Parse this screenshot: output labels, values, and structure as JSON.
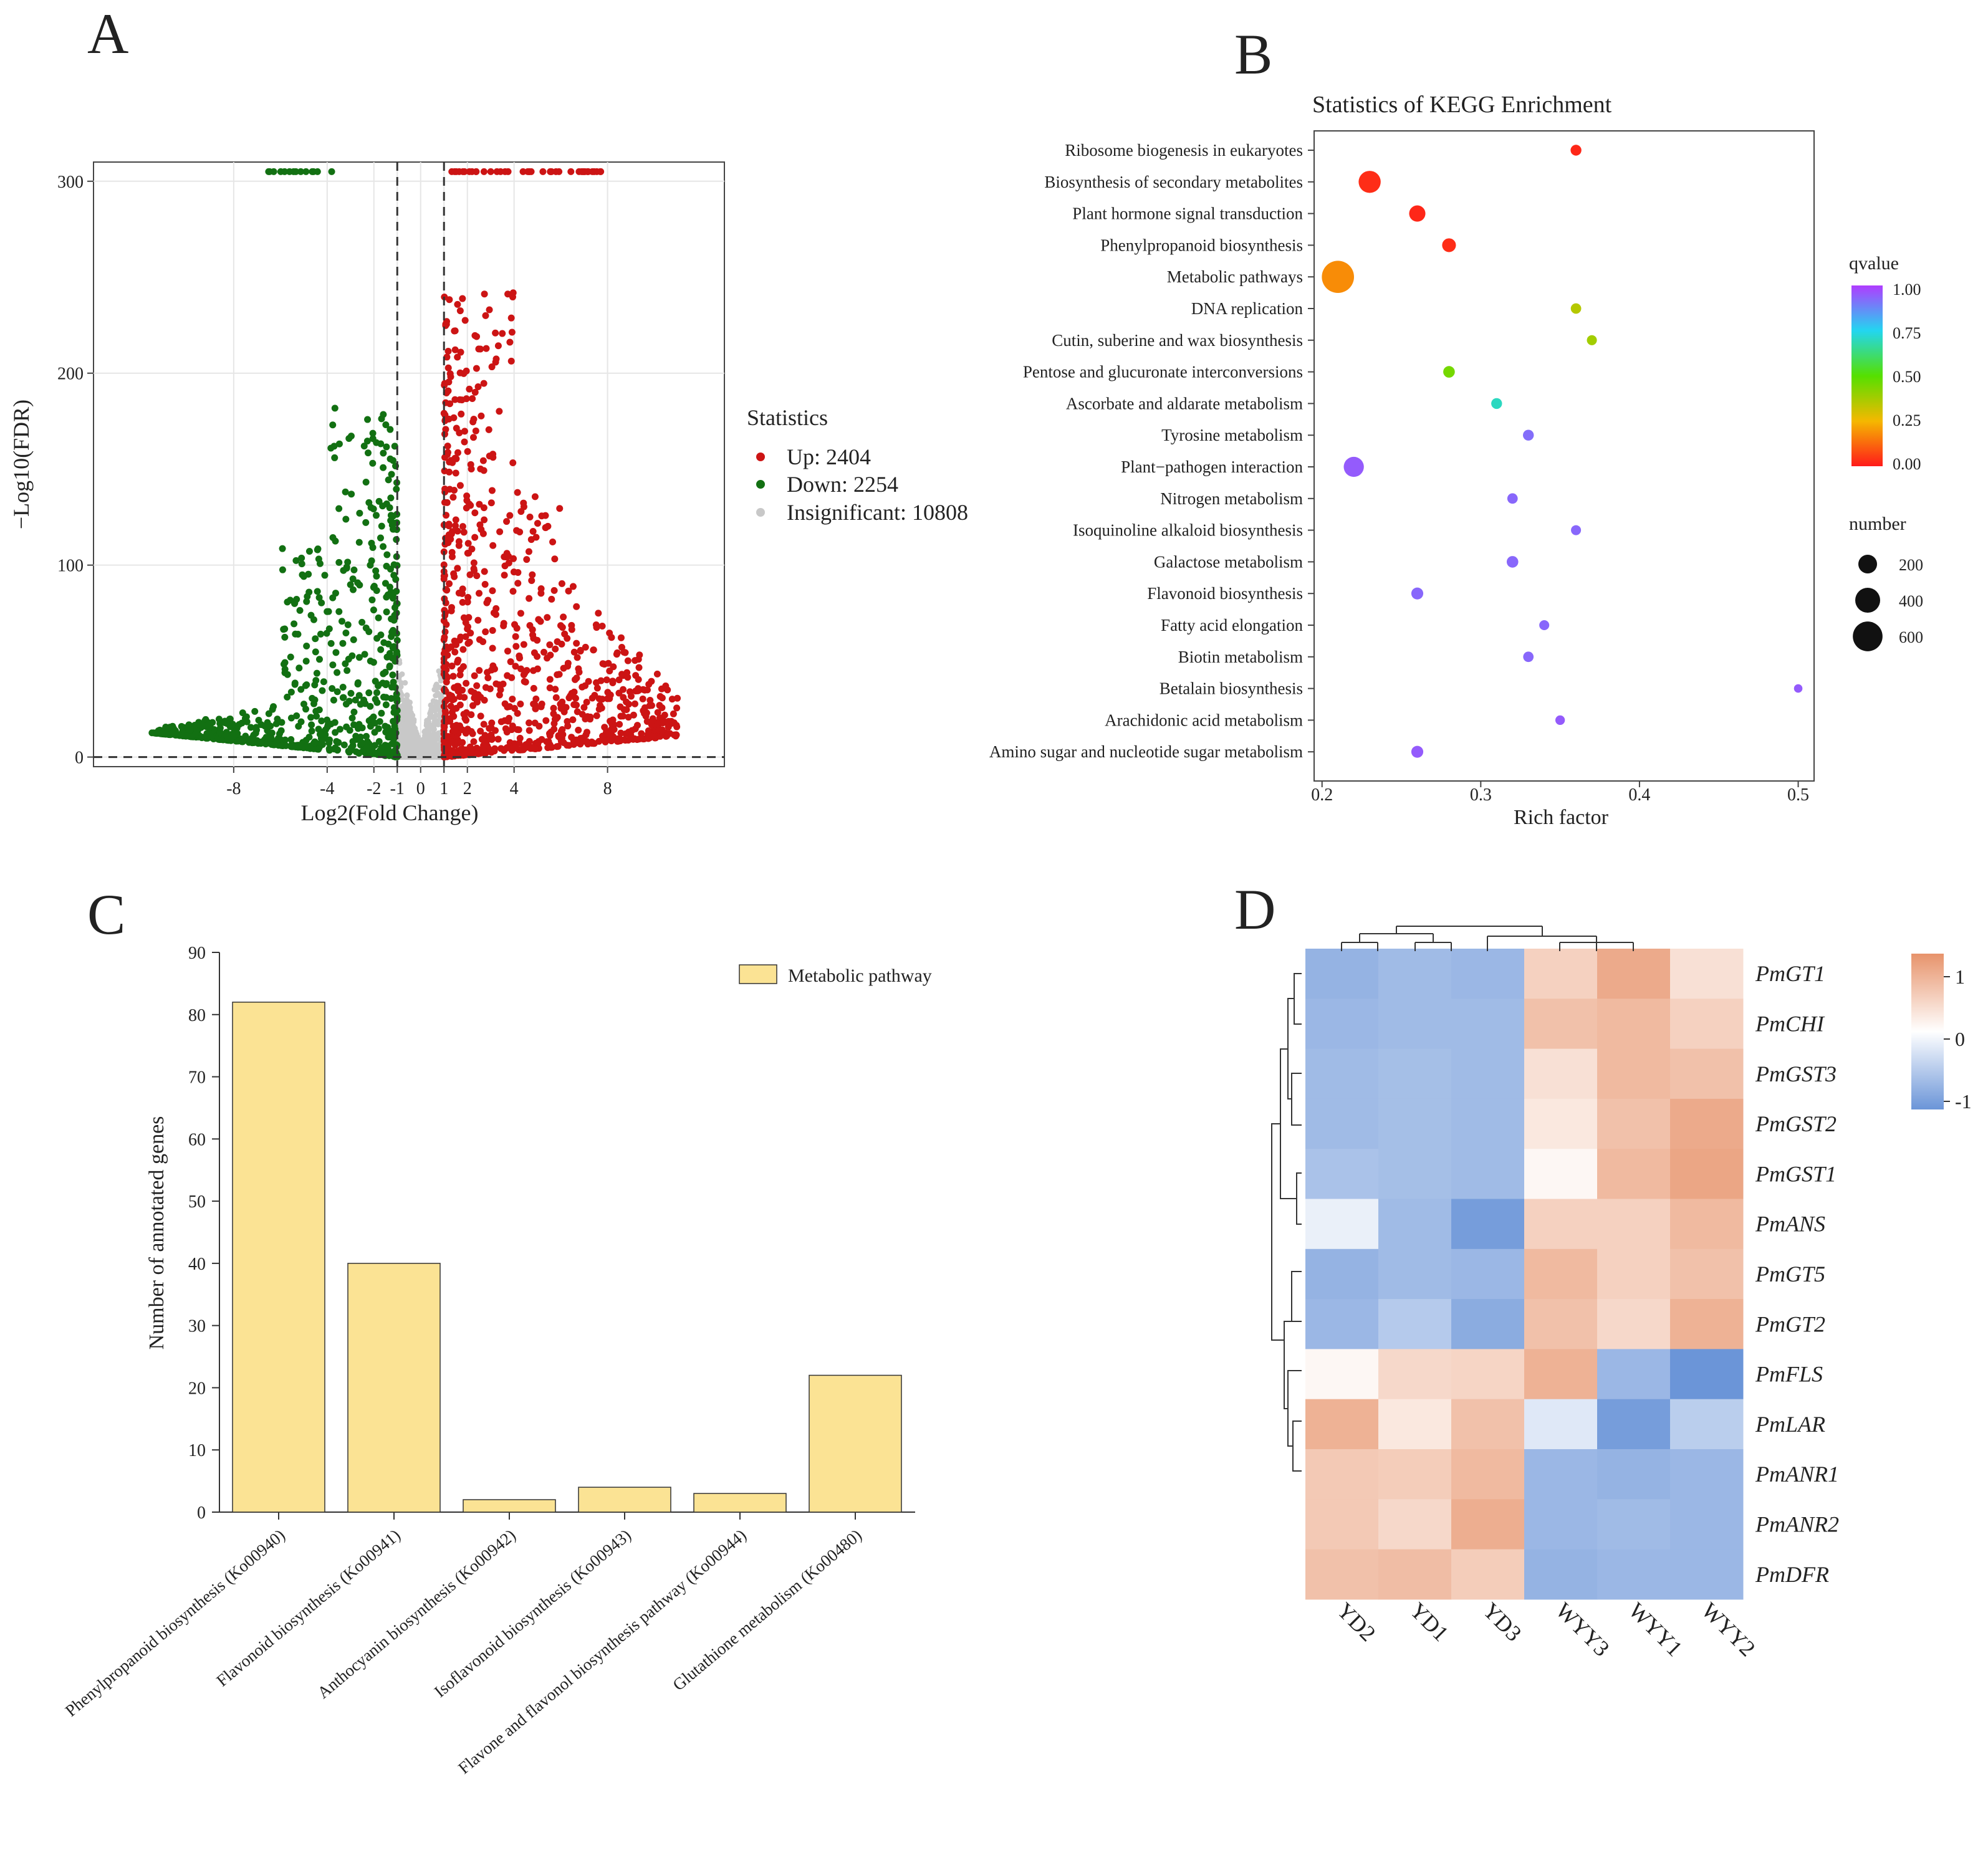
{
  "panels": {
    "a": "A",
    "b": "B",
    "c": "C",
    "d": "D"
  },
  "chart_data": [
    {
      "id": "volcano",
      "type": "scatter",
      "xlabel": "Log2(Fold Change)",
      "ylabel": "−Log10(FDR)",
      "x_ticks": [
        -8,
        -4,
        -2,
        -1,
        0,
        1,
        2,
        4,
        8
      ],
      "y_ticks": [
        0,
        100,
        200,
        300
      ],
      "xlim": [
        -14,
        13
      ],
      "ylim": [
        -5,
        310
      ],
      "thresholds": {
        "x": [
          -1,
          1
        ],
        "y": 0
      },
      "legend": {
        "title": "Statistics",
        "items": [
          {
            "label": "Up: 2404",
            "color": "#cc1414"
          },
          {
            "label": "Down: 2254",
            "color": "#127012"
          },
          {
            "label": "Insignificant: 10808",
            "color": "#c8c8c8"
          }
        ]
      },
      "series": [
        {
          "name": "Up",
          "count": 2404,
          "color": "#cc1414"
        },
        {
          "name": "Down",
          "count": 2254,
          "color": "#127012"
        },
        {
          "name": "Insignificant",
          "count": 10808,
          "color": "#c8c8c8"
        }
      ]
    },
    {
      "id": "kegg",
      "type": "scatter",
      "title": "Statistics of KEGG Enrichment",
      "xlabel": "Rich factor",
      "x_ticks": [
        0.2,
        0.3,
        0.4,
        0.5
      ],
      "xlim": [
        0.195,
        0.51
      ],
      "categories": [
        "Ribosome biogenesis in eukaryotes",
        "Biosynthesis of secondary metabolites",
        "Plant hormone signal transduction",
        "Phenylpropanoid biosynthesis",
        "Metabolic pathways",
        "DNA replication",
        "Cutin, suberine and wax biosynthesis",
        "Pentose and glucuronate interconversions",
        "Ascorbate and aldarate metabolism",
        "Tyrosine metabolism",
        "Plant−pathogen interaction",
        "Nitrogen metabolism",
        "Isoquinoline alkaloid biosynthesis",
        "Galactose metabolism",
        "Flavonoid biosynthesis",
        "Fatty acid elongation",
        "Biotin metabolism",
        "Betalain biosynthesis",
        "Arachidonic acid metabolism",
        "Amino sugar and nucleotide sugar metabolism"
      ],
      "rich_factor": [
        0.36,
        0.23,
        0.26,
        0.28,
        0.21,
        0.36,
        0.37,
        0.28,
        0.31,
        0.33,
        0.22,
        0.32,
        0.36,
        0.32,
        0.26,
        0.34,
        0.33,
        0.5,
        0.35,
        0.26
      ],
      "qvalue": [
        0.02,
        0.03,
        0.02,
        0.03,
        0.18,
        0.35,
        0.38,
        0.45,
        0.7,
        0.92,
        0.95,
        0.93,
        0.93,
        0.93,
        0.93,
        0.93,
        0.93,
        0.95,
        0.95,
        0.95
      ],
      "number": [
        45,
        300,
        140,
        90,
        720,
        40,
        35,
        55,
        45,
        45,
        240,
        40,
        35,
        55,
        60,
        35,
        40,
        20,
        30,
        60
      ],
      "color_legend": {
        "title": "qvalue",
        "ticks": [
          "1.00",
          "0.75",
          "0.50",
          "0.25",
          "0.00"
        ]
      },
      "size_legend": {
        "title": "number",
        "values": [
          200,
          400,
          600
        ]
      }
    },
    {
      "id": "bar",
      "type": "bar",
      "ylabel": "Number of annotated genes",
      "ylim": [
        0,
        90
      ],
      "y_ticks": [
        0,
        10,
        20,
        30,
        40,
        50,
        60,
        70,
        80,
        90
      ],
      "legend": "Metabolic pathway",
      "categories": [
        "Phenylpropanoid biosynthesis (Ko00940)",
        "Flavonoid biosynthesis (Ko00941)",
        "Anthocyanin biosynthesis (Ko00942)",
        "Isoflavonoid biosynthesis (Ko00943)",
        "Flavone and flavonol biosynthesis pathway (Ko00944)",
        "Glutathione metabolism (Ko00480)"
      ],
      "values": [
        82,
        40,
        2,
        4,
        3,
        22
      ]
    },
    {
      "id": "heatmap",
      "type": "heatmap",
      "columns": [
        "YD2",
        "YD1",
        "YD3",
        "WYY3",
        "WYY1",
        "WYY2"
      ],
      "rows": [
        "PmGT1",
        "PmCHI",
        "PmGST3",
        "PmGST2",
        "PmGST1",
        "PmANS",
        "PmGT5",
        "PmGT2",
        "PmFLS",
        "PmLAR",
        "PmANR1",
        "PmANR2",
        "PmDFR"
      ],
      "values": [
        [
          -1.0,
          -0.9,
          -0.95,
          0.6,
          1.1,
          0.4
        ],
        [
          -0.95,
          -0.9,
          -0.9,
          0.8,
          0.9,
          0.6
        ],
        [
          -0.9,
          -0.85,
          -0.9,
          0.4,
          0.9,
          0.8
        ],
        [
          -0.9,
          -0.85,
          -0.9,
          0.3,
          0.8,
          1.1
        ],
        [
          -0.8,
          -0.85,
          -0.9,
          0.1,
          0.9,
          1.15
        ],
        [
          -0.2,
          -0.9,
          -1.3,
          0.6,
          0.6,
          0.9
        ],
        [
          -1.0,
          -0.9,
          -0.95,
          0.9,
          0.6,
          0.8
        ],
        [
          -0.95,
          -0.7,
          -1.1,
          0.8,
          0.5,
          1.0
        ],
        [
          0.1,
          0.5,
          0.55,
          1.0,
          -0.95,
          -1.4
        ],
        [
          1.0,
          0.3,
          0.8,
          -0.3,
          -1.3,
          -0.65
        ],
        [
          0.7,
          0.65,
          0.9,
          -0.95,
          -1.0,
          -0.95
        ],
        [
          0.7,
          0.5,
          1.05,
          -0.95,
          -0.9,
          -0.95
        ],
        [
          0.8,
          0.85,
          0.65,
          -1.0,
          -0.95,
          -0.95
        ]
      ],
      "scale": {
        "ticks": [
          "1",
          "0",
          "-1"
        ]
      }
    }
  ]
}
